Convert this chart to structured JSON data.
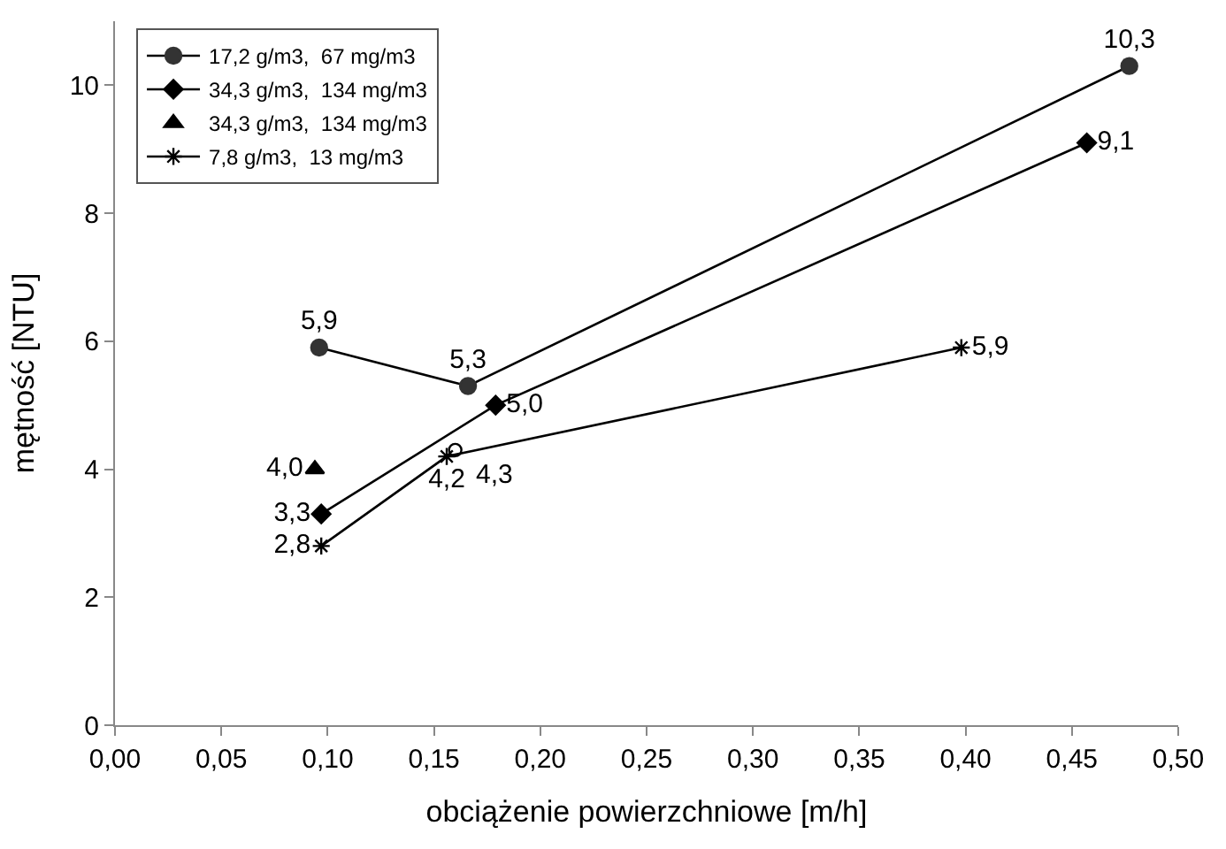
{
  "chart_data": {
    "type": "line",
    "xlabel": "obciążenie powierzchniowe [m/h]",
    "ylabel": "mętność [NTU]",
    "xlim": [
      0,
      0.5
    ],
    "ylim": [
      0,
      11
    ],
    "xticks": [
      {
        "value": 0,
        "label": "0,00"
      },
      {
        "value": 0.05,
        "label": "0,05"
      },
      {
        "value": 0.1,
        "label": "0,10"
      },
      {
        "value": 0.15,
        "label": "0,15"
      },
      {
        "value": 0.2,
        "label": "0,20"
      },
      {
        "value": 0.25,
        "label": "0,25"
      },
      {
        "value": 0.3,
        "label": "0,30"
      },
      {
        "value": 0.35,
        "label": "0,35"
      },
      {
        "value": 0.4,
        "label": "0,40"
      },
      {
        "value": 0.45,
        "label": "0,45"
      },
      {
        "value": 0.5,
        "label": "0,50"
      }
    ],
    "yticks": [
      0,
      2,
      4,
      6,
      8,
      10
    ],
    "legend": "top left",
    "line_style": "solid",
    "series": [
      {
        "name": "17,2 g/m3,  67 mg/m3",
        "color": "#333333",
        "marker": "circle",
        "x": [
          0.096,
          0.166,
          0.477
        ],
        "values": [
          5.9,
          5.3,
          10.3
        ],
        "value_labels": [
          "5,9",
          "5,3",
          "10,3"
        ]
      },
      {
        "name": "34,3 g/m3,  134 mg/m3",
        "color": "#000000",
        "marker": "diamond",
        "x": [
          0.097,
          0.179,
          0.457
        ],
        "values": [
          3.3,
          5.0,
          9.1
        ],
        "value_labels": [
          "3,3",
          "5,0",
          "9,1"
        ]
      },
      {
        "name": "34,3 g/m3,  134 mg/m3",
        "color": "#000000",
        "type": "scatter",
        "marker": "triangle",
        "x": [
          0.094
        ],
        "values": [
          4.0
        ],
        "value_labels": [
          "4,0"
        ]
      },
      {
        "name": "7,8 g/m3,  13 mg/m3",
        "color": "#000000",
        "marker": "cross",
        "x": [
          0.097,
          0.156,
          0.398
        ],
        "values": [
          2.8,
          4.2,
          5.9
        ],
        "value_labels": [
          "2,8",
          "4,2",
          "5,9"
        ]
      },
      {
        "color": "#000000",
        "type": "scatter",
        "marker": "circle-open",
        "x": [
          0.16
        ],
        "values": [
          4.3
        ],
        "value_labels": [
          "4,3"
        ]
      }
    ]
  }
}
